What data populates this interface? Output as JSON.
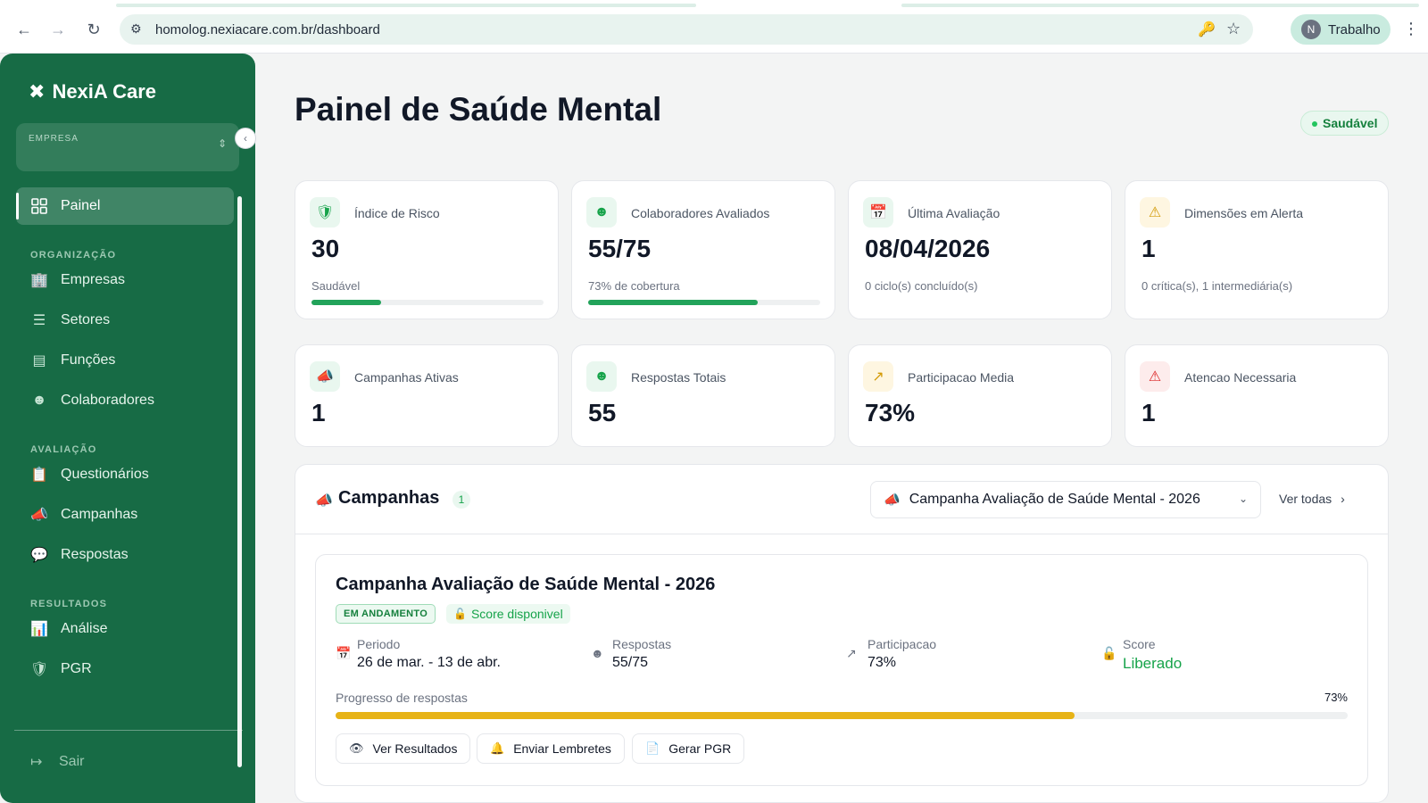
{
  "browser": {
    "url": "homolog.nexiacare.com.br/dashboard",
    "profile_initial": "N",
    "profile_name": "Trabalho"
  },
  "sidebar": {
    "brand": "NexiA Care",
    "empresa_label": "EMPRESA",
    "active_item": "Painel",
    "sections": {
      "organizacao": "ORGANIZAÇÃO",
      "avaliacao": "AVALIAÇÃO",
      "resultados": "RESULTADOS"
    },
    "items": {
      "painel": "Painel",
      "empresas": "Empresas",
      "setores": "Setores",
      "funcoes": "Funções",
      "colaboradores": "Colaboradores",
      "questionarios": "Questionários",
      "campanhas": "Campanhas",
      "respostas": "Respostas",
      "analise": "Análise",
      "pgr": "PGR"
    },
    "logout": "Sair"
  },
  "main": {
    "title": "Painel de Saúde Mental",
    "status": "Saudável",
    "status_color": "#15803d",
    "stats_row1": [
      {
        "label": "Índice de Risco",
        "value": "30",
        "sub": "Saudável",
        "progress": 0.3,
        "icon": "shield-icon"
      },
      {
        "label": "Colaboradores Avaliados",
        "value": "55/75",
        "sub": "73% de cobertura",
        "progress": 0.73,
        "icon": "users-icon"
      },
      {
        "label": "Última Avaliação",
        "value": "08/04/2026",
        "sub": "0 ciclo(s) concluído(s)",
        "icon": "calendar-icon"
      },
      {
        "label": "Dimensões em Alerta",
        "value": "1",
        "sub": "0 crítica(s), 1 intermediária(s)",
        "icon": "warning-icon"
      }
    ],
    "stats_row2": [
      {
        "label": "Campanhas Ativas",
        "value": "1",
        "icon": "megaphone-icon"
      },
      {
        "label": "Respostas Totais",
        "value": "55",
        "icon": "users-icon"
      },
      {
        "label": "Participacao Media",
        "value": "73%",
        "icon": "trending-up-icon"
      },
      {
        "label": "Atencao Necessaria",
        "value": "1",
        "icon": "alert-triangle-icon"
      }
    ],
    "campaigns": {
      "title": "Campanhas",
      "count": "1",
      "selected": "Campanha Avaliação de Saúde Mental - 2026",
      "view_all": "Ver todas",
      "card": {
        "title": "Campanha Avaliação de Saúde Mental - 2026",
        "status_badge": "EM ANDAMENTO",
        "score_badge": "Score disponivel",
        "periodo_label": "Periodo",
        "periodo_value": "26 de mar. - 13 de abr.",
        "respostas_label": "Respostas",
        "respostas_value": "55/75",
        "participacao_label": "Participacao",
        "participacao_value": "73%",
        "score_label": "Score",
        "score_value": "Liberado",
        "progress_label": "Progresso de respostas",
        "progress_pct": "73%",
        "progress": 0.73,
        "progress_color": "#e7b317",
        "buttons": {
          "ver_resultados": "Ver Resultados",
          "enviar_lembretes": "Enviar Lembretes",
          "gerar_pgr": "Gerar PGR"
        }
      }
    }
  }
}
